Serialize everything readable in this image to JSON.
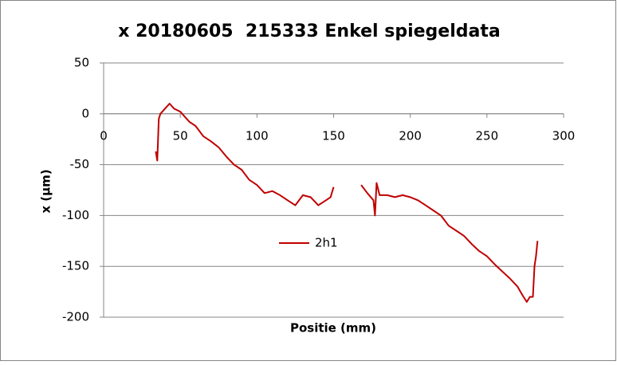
{
  "chart_data": {
    "type": "line",
    "title": "x 20180605  215333 Enkel spiegeldata",
    "x_label": "Positie (mm)",
    "y_label": "x (µm)",
    "x": [
      34,
      35,
      36,
      37,
      40,
      43,
      46,
      50,
      53,
      56,
      60,
      65,
      70,
      75,
      80,
      85,
      90,
      95,
      100,
      105,
      110,
      115,
      120,
      125,
      130,
      135,
      140,
      145,
      148,
      150,
      158,
      168,
      172,
      176,
      177,
      178,
      180,
      185,
      190,
      195,
      200,
      205,
      210,
      215,
      220,
      225,
      230,
      235,
      240,
      245,
      250,
      255,
      260,
      265,
      270,
      273,
      276,
      278,
      280,
      281,
      282,
      283
    ],
    "series": [
      {
        "name": "2h1",
        "color": "#c00000",
        "values": [
          -37,
          -46,
          -5,
          0,
          5,
          10,
          5,
          2,
          -3,
          -8,
          -12,
          -22,
          -27,
          -33,
          -42,
          -50,
          -55,
          -65,
          -70,
          -78,
          -76,
          -80,
          -85,
          -90,
          -80,
          -82,
          -90,
          -85,
          -82,
          -72,
          null,
          -70,
          -78,
          -85,
          -100,
          -68,
          -80,
          -80,
          -82,
          -80,
          -82,
          -85,
          -90,
          -95,
          -100,
          -110,
          -115,
          -120,
          -128,
          -135,
          -140,
          -148,
          -155,
          -162,
          -170,
          -178,
          -185,
          -180,
          -180,
          -150,
          -140,
          -125
        ]
      }
    ],
    "xlim": [
      0,
      300
    ],
    "xticks": [
      0,
      50,
      100,
      150,
      200,
      250,
      300
    ],
    "ylim": [
      -200,
      50
    ],
    "yticks": [
      -200,
      -150,
      -100,
      -50,
      0,
      50
    ],
    "grid": true,
    "legend": "inside"
  }
}
